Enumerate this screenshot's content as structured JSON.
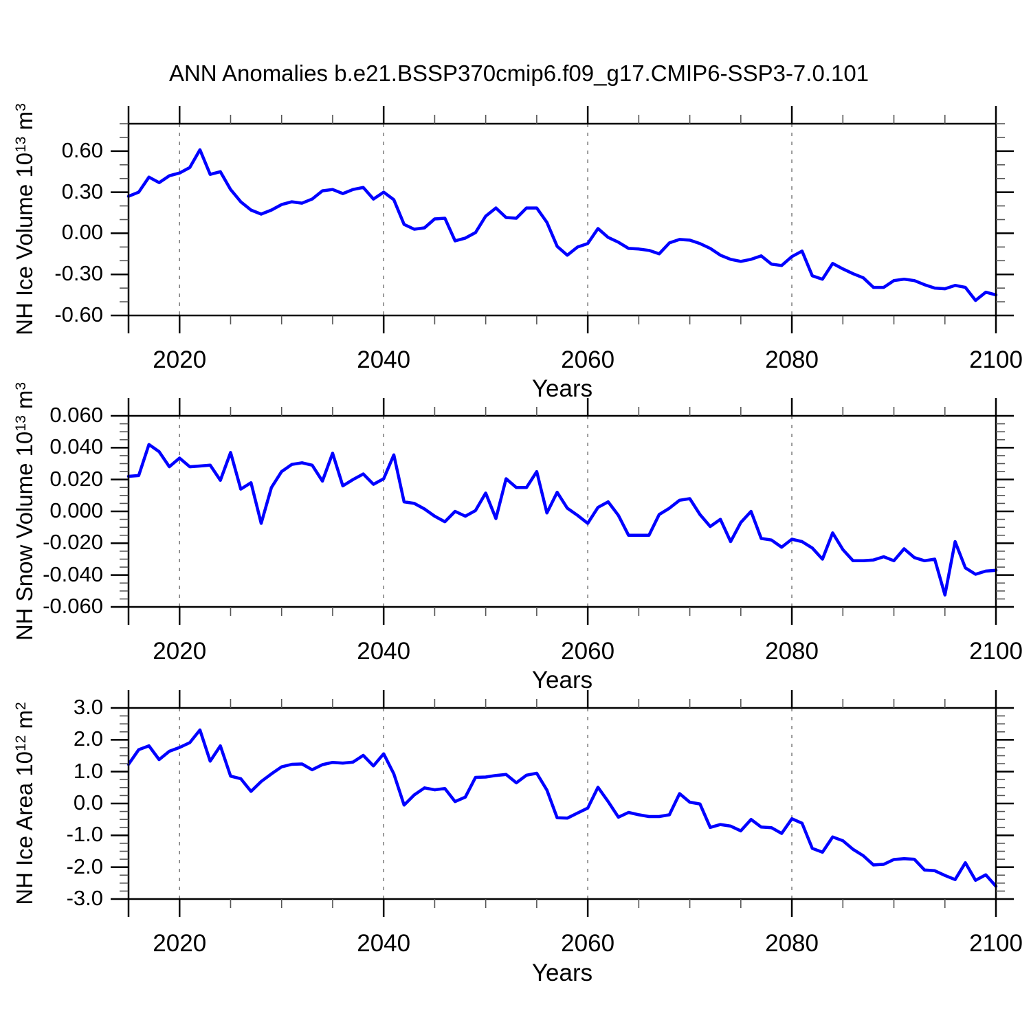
{
  "header": {
    "title": "ANN Anomalies b.e21.BSSP370cmip6.f09_g17.CMIP6-SSP3-7.0.101"
  },
  "styles": {
    "line_color": "#0000FF",
    "grid_color": "#808080",
    "axis_color": "#000000",
    "minor_tick_color": "#555555",
    "background": "#FFFFFF"
  },
  "chart_data": [
    {
      "type": "line",
      "panel": "nh-ice-volume",
      "xlabel": "Years",
      "ylabel": "NH Ice Volume 10^13 m^3",
      "ylabel_main": "NH Ice Volume 10",
      "ylabel_exp": "13",
      "ylabel_unit": " m",
      "ylabel_unit_exp": "3",
      "xlim": [
        2015,
        2100
      ],
      "ylim": [
        -0.6,
        0.8
      ],
      "x_start": 2015,
      "x_step": 1,
      "xticks": [
        2020,
        2040,
        2060,
        2080,
        2100
      ],
      "xtick_labels": [
        "2020",
        "2040",
        "2060",
        "2080",
        "2100"
      ],
      "x_edge_major": 2015,
      "x_minor_step": 5,
      "yticks": [
        0.6,
        0.3,
        0.0,
        -0.3,
        -0.6
      ],
      "ytick_labels": [
        "0.60",
        "0.30",
        "0.00",
        "-0.30",
        "-0.60"
      ],
      "y_minor_step": 0.1,
      "grid_x": [
        2020,
        2040,
        2060,
        2080
      ],
      "grid_on": true,
      "legend": "none",
      "values": [
        0.27,
        0.3,
        0.41,
        0.37,
        0.42,
        0.44,
        0.48,
        0.61,
        0.43,
        0.45,
        0.32,
        0.23,
        0.17,
        0.14,
        0.17,
        0.21,
        0.23,
        0.22,
        0.25,
        0.31,
        0.32,
        0.29,
        0.32,
        0.335,
        0.25,
        0.3,
        0.245,
        0.065,
        0.03,
        0.04,
        0.105,
        0.11,
        -0.055,
        -0.035,
        0.005,
        0.125,
        0.185,
        0.115,
        0.11,
        0.185,
        0.185,
        0.08,
        -0.095,
        -0.16,
        -0.1,
        -0.075,
        0.035,
        -0.03,
        -0.065,
        -0.11,
        -0.115,
        -0.125,
        -0.15,
        -0.07,
        -0.045,
        -0.05,
        -0.075,
        -0.11,
        -0.16,
        -0.19,
        -0.205,
        -0.19,
        -0.165,
        -0.225,
        -0.235,
        -0.17,
        -0.13,
        -0.31,
        -0.335,
        -0.22,
        -0.26,
        -0.295,
        -0.325,
        -0.395,
        -0.395,
        -0.345,
        -0.335,
        -0.345,
        -0.375,
        -0.4,
        -0.405,
        -0.38,
        -0.395,
        -0.49,
        -0.43,
        -0.45
      ]
    },
    {
      "type": "line",
      "panel": "nh-snow-volume",
      "xlabel": "Years",
      "ylabel": "NH Snow Volume 10^13 m^3",
      "ylabel_main": "NH Snow Volume 10",
      "ylabel_exp": "13",
      "ylabel_unit": " m",
      "ylabel_unit_exp": "3",
      "xlim": [
        2015,
        2100
      ],
      "ylim": [
        -0.06,
        0.06
      ],
      "x_start": 2015,
      "x_step": 1,
      "xticks": [
        2020,
        2040,
        2060,
        2080,
        2100
      ],
      "xtick_labels": [
        "2020",
        "2040",
        "2060",
        "2080",
        "2100"
      ],
      "x_edge_major": 2015,
      "x_minor_step": 5,
      "yticks": [
        0.06,
        0.04,
        0.02,
        0.0,
        -0.02,
        -0.04,
        -0.06
      ],
      "ytick_labels": [
        "0.060",
        "0.040",
        "0.020",
        "0.000",
        "-0.020",
        "-0.040",
        "-0.060"
      ],
      "y_minor_step": 0.005,
      "grid_x": [
        2020,
        2040,
        2060,
        2080
      ],
      "grid_on": true,
      "legend": "none",
      "values": [
        0.022,
        0.0225,
        0.042,
        0.0375,
        0.028,
        0.0335,
        0.028,
        0.0285,
        0.029,
        0.0195,
        0.037,
        0.014,
        0.018,
        -0.0075,
        0.015,
        0.025,
        0.0295,
        0.0305,
        0.029,
        0.019,
        0.0365,
        0.016,
        0.02,
        0.0235,
        0.017,
        0.0205,
        0.0355,
        0.006,
        0.005,
        0.0015,
        -0.003,
        -0.0065,
        0.0,
        -0.003,
        0.0005,
        0.0115,
        -0.0045,
        0.0205,
        0.015,
        0.015,
        0.025,
        -0.001,
        0.012,
        0.002,
        -0.0025,
        -0.0075,
        0.0025,
        0.006,
        -0.0025,
        -0.015,
        -0.015,
        -0.015,
        -0.002,
        0.002,
        0.007,
        0.008,
        -0.002,
        -0.0095,
        -0.005,
        -0.019,
        -0.007,
        0.0,
        -0.017,
        -0.018,
        -0.0225,
        -0.0175,
        -0.019,
        -0.023,
        -0.03,
        -0.0135,
        -0.024,
        -0.031,
        -0.031,
        -0.0305,
        -0.0285,
        -0.031,
        -0.0235,
        -0.029,
        -0.031,
        -0.03,
        -0.0525,
        -0.019,
        -0.0355,
        -0.0395,
        -0.0375,
        -0.037
      ]
    },
    {
      "type": "line",
      "panel": "nh-ice-area",
      "xlabel": "Years",
      "ylabel": "NH Ice Area 10^12 m^2",
      "ylabel_main": "NH Ice Area 10",
      "ylabel_exp": "12",
      "ylabel_unit": " m",
      "ylabel_unit_exp": "2",
      "xlim": [
        2015,
        2100
      ],
      "ylim": [
        -3.0,
        3.0
      ],
      "x_start": 2015,
      "x_step": 1,
      "xticks": [
        2020,
        2040,
        2060,
        2080,
        2100
      ],
      "xtick_labels": [
        "2020",
        "2040",
        "2060",
        "2080",
        "2100"
      ],
      "x_edge_major": 2015,
      "x_minor_step": 5,
      "yticks": [
        3.0,
        2.0,
        1.0,
        0.0,
        -1.0,
        -2.0,
        -3.0
      ],
      "ytick_labels": [
        "3.0",
        "2.0",
        "1.0",
        "0.0",
        "-1.0",
        "-2.0",
        "-3.0"
      ],
      "y_minor_step": 0.25,
      "grid_x": [
        2020,
        2040,
        2060,
        2080
      ],
      "grid_on": true,
      "legend": "none",
      "values": [
        1.23,
        1.69,
        1.81,
        1.38,
        1.64,
        1.76,
        1.91,
        2.31,
        1.33,
        1.81,
        0.86,
        0.78,
        0.38,
        0.69,
        0.93,
        1.15,
        1.23,
        1.24,
        1.06,
        1.22,
        1.29,
        1.27,
        1.3,
        1.51,
        1.18,
        1.56,
        0.93,
        -0.05,
        0.27,
        0.49,
        0.43,
        0.47,
        0.06,
        0.2,
        0.82,
        0.83,
        0.88,
        0.91,
        0.65,
        0.89,
        0.95,
        0.42,
        -0.45,
        -0.46,
        -0.3,
        -0.145,
        0.51,
        0.06,
        -0.43,
        -0.28,
        -0.355,
        -0.41,
        -0.41,
        -0.355,
        0.31,
        0.04,
        -0.015,
        -0.75,
        -0.66,
        -0.71,
        -0.86,
        -0.5,
        -0.74,
        -0.76,
        -0.94,
        -0.48,
        -0.62,
        -1.41,
        -1.53,
        -1.05,
        -1.17,
        -1.44,
        -1.64,
        -1.93,
        -1.91,
        -1.76,
        -1.73,
        -1.75,
        -2.09,
        -2.11,
        -2.26,
        -2.39,
        -1.86,
        -2.41,
        -2.24,
        -2.6
      ]
    }
  ]
}
